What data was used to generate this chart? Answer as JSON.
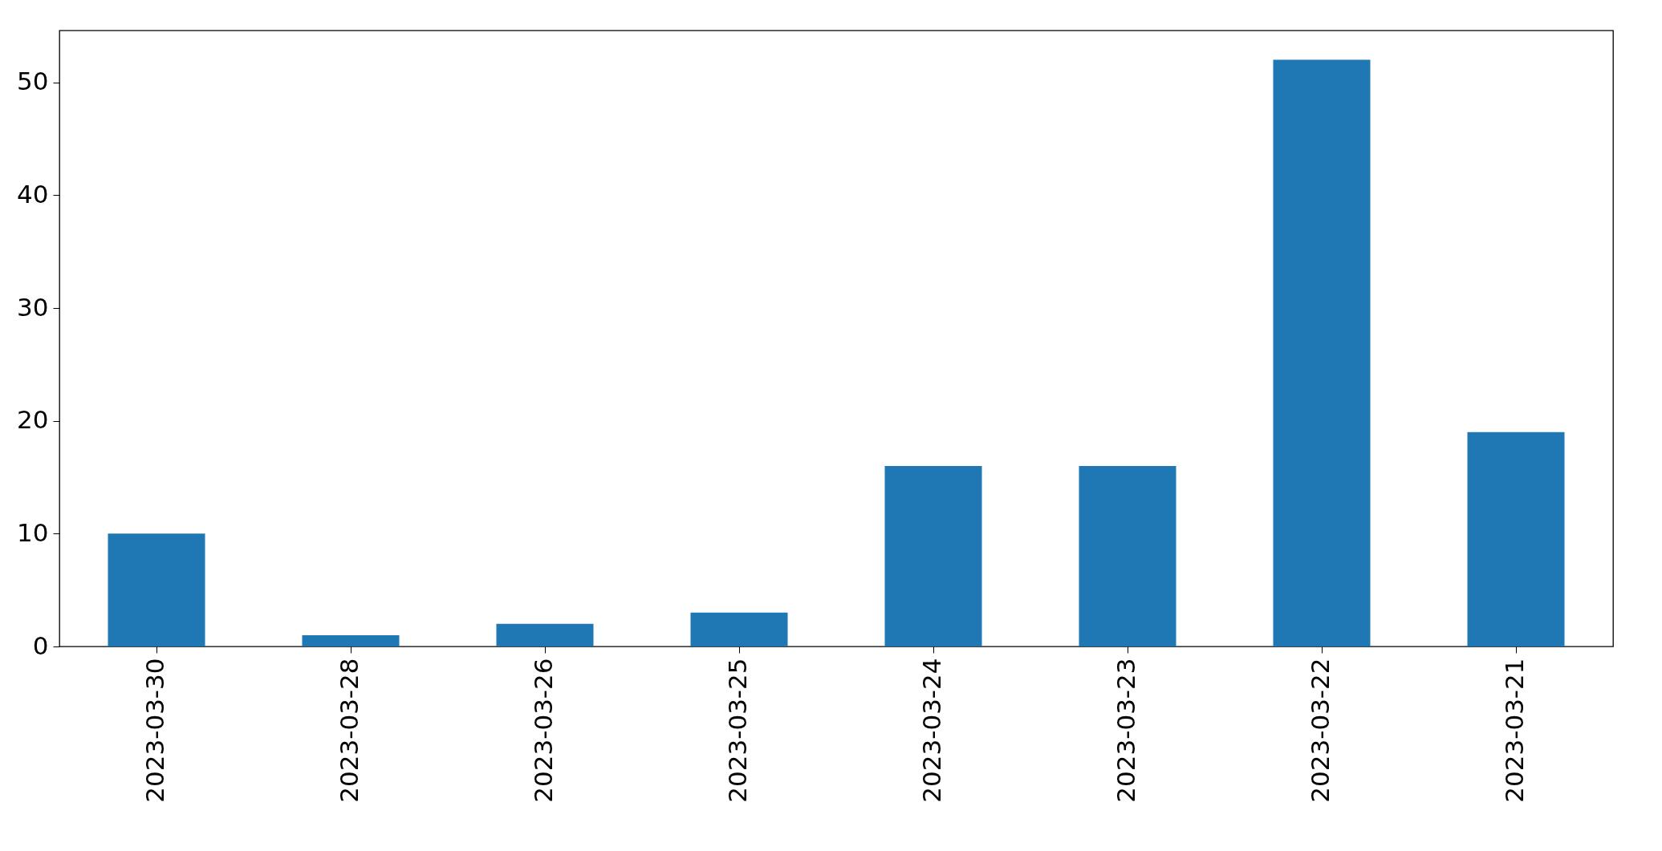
{
  "chart_data": {
    "type": "bar",
    "categories": [
      "2023-03-30",
      "2023-03-28",
      "2023-03-26",
      "2023-03-25",
      "2023-03-24",
      "2023-03-23",
      "2023-03-22",
      "2023-03-21"
    ],
    "values": [
      10,
      1,
      2,
      3,
      16,
      16,
      52,
      19
    ],
    "color": "#1f77b4",
    "ylim": [
      0,
      54.6
    ],
    "yticks": [
      0,
      10,
      20,
      30,
      40,
      50
    ],
    "grid": false
  }
}
